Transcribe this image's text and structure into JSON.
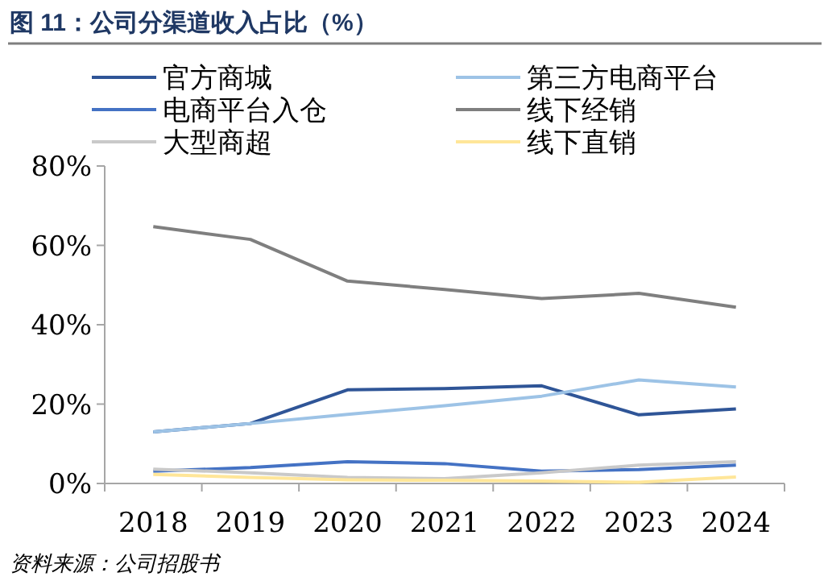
{
  "chart_data": {
    "type": "line",
    "title": "图 11：公司分渠道收入占比（%）",
    "categories": [
      "2018",
      "2019",
      "2020",
      "2021",
      "2022",
      "2023",
      "2024"
    ],
    "series": [
      {
        "name": "官方商城",
        "color": "#2f5597",
        "values": [
          13.0,
          15.1,
          23.6,
          23.9,
          24.6,
          17.3,
          18.8
        ]
      },
      {
        "name": "第三方电商平台",
        "color": "#9dc3e6",
        "values": [
          13.0,
          15.1,
          17.4,
          19.6,
          22.0,
          26.1,
          24.3
        ]
      },
      {
        "name": "电商平台入仓",
        "color": "#4472c4",
        "values": [
          3.1,
          4.0,
          5.5,
          5.0,
          3.1,
          3.5,
          4.6
        ]
      },
      {
        "name": "线下经销",
        "color": "#7f7f7f",
        "values": [
          64.7,
          61.5,
          51.0,
          48.9,
          46.6,
          47.9,
          44.4
        ]
      },
      {
        "name": "大型商超",
        "color": "#c9c9c9",
        "values": [
          3.6,
          2.7,
          1.5,
          1.2,
          2.7,
          4.6,
          5.5
        ]
      },
      {
        "name": "线下直销",
        "color": "#ffe699",
        "values": [
          2.3,
          1.5,
          0.9,
          0.8,
          0.6,
          0.3,
          1.6
        ]
      }
    ],
    "ylim": [
      0,
      80
    ],
    "yticks": [
      {
        "value": 0,
        "label": "0%"
      },
      {
        "value": 20,
        "label": "20%"
      },
      {
        "value": 40,
        "label": "40%"
      },
      {
        "value": 60,
        "label": "60%"
      },
      {
        "value": 80,
        "label": "80%"
      }
    ],
    "grid": false,
    "legend": "top",
    "marker": "none",
    "line_style": "solid",
    "annotations": [
      "资料来源：公司招股书"
    ]
  }
}
